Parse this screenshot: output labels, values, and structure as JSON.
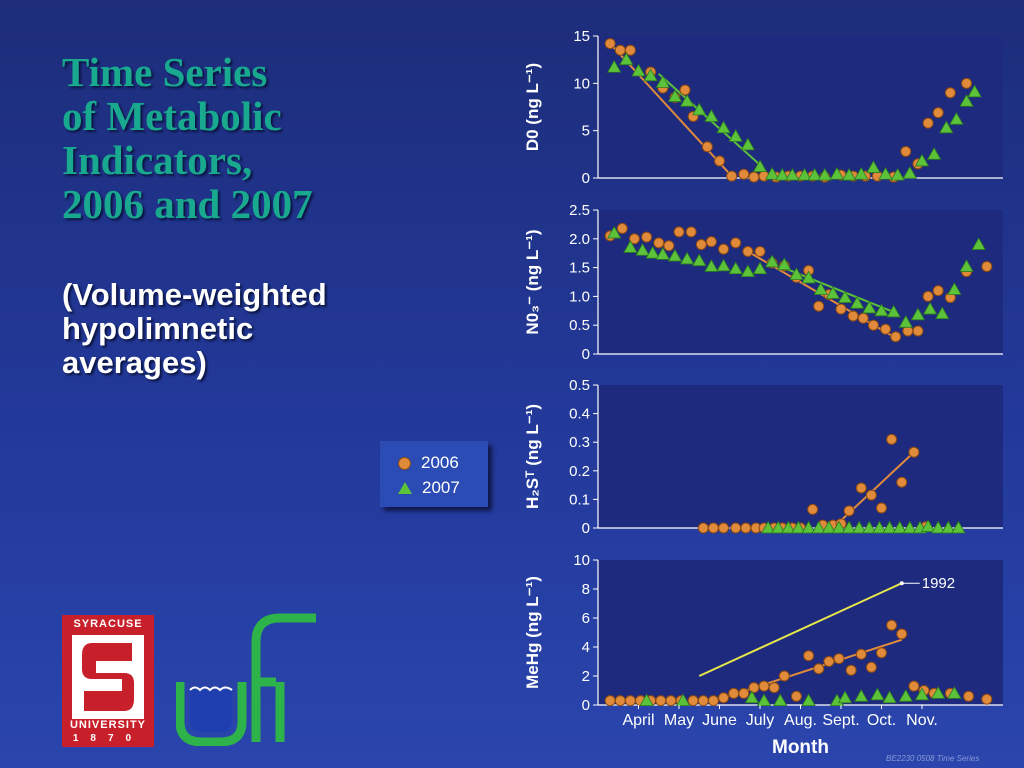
{
  "title_lines": [
    "Time Series",
    "of Metabolic",
    "Indicators,",
    "2006 and 2007"
  ],
  "subtitle_lines": [
    "(Volume-weighted",
    "hypolimnetic",
    "averages)"
  ],
  "legend": {
    "series_2006": "2006",
    "series_2007": "2007"
  },
  "logos": {
    "syracuse_top": "SYRACUSE",
    "syracuse_bottom": "UNIVERSITY",
    "syracuse_year": "1870",
    "ufi": "ufi"
  },
  "footer": "BE2230 0508  Time Series",
  "colors": {
    "background": "#2338a0",
    "plot_bg": "#1e2a7e",
    "title": "#19a98f",
    "series_2006": "#e08a3c",
    "series_2007": "#5cc23a",
    "trend_1992": "#e6e64a"
  },
  "chart_data": [
    {
      "type": "scatter",
      "ylabel": "D0 (ng L⁻¹)",
      "ylim": [
        0,
        15
      ],
      "yticks": [
        "0",
        "5",
        "10",
        "15"
      ],
      "series": [
        {
          "name": "2006",
          "points": [
            [
              3.3,
              14.2
            ],
            [
              3.55,
              13.5
            ],
            [
              3.8,
              13.5
            ],
            [
              4.3,
              11.2
            ],
            [
              4.6,
              9.5
            ],
            [
              4.9,
              8.5
            ],
            [
              5.15,
              9.3
            ],
            [
              5.35,
              6.5
            ],
            [
              5.7,
              3.3
            ],
            [
              6.0,
              1.8
            ],
            [
              6.3,
              0.2
            ],
            [
              6.6,
              0.4
            ],
            [
              6.85,
              0.1
            ],
            [
              7.1,
              0.2
            ],
            [
              7.4,
              0.1
            ],
            [
              7.7,
              0.2
            ],
            [
              8.0,
              0.2
            ],
            [
              8.3,
              0.2
            ],
            [
              8.6,
              0.1
            ],
            [
              9.0,
              0.3
            ],
            [
              9.3,
              0.2
            ],
            [
              9.6,
              0.2
            ],
            [
              9.9,
              0.2
            ],
            [
              10.3,
              0.1
            ],
            [
              10.6,
              2.8
            ],
            [
              10.9,
              1.5
            ],
            [
              11.15,
              5.8
            ],
            [
              11.4,
              6.9
            ],
            [
              11.7,
              9.0
            ],
            [
              12.1,
              10.0
            ]
          ]
        },
        {
          "name": "2007",
          "points": [
            [
              3.4,
              11.7
            ],
            [
              3.7,
              12.5
            ],
            [
              4.0,
              11.3
            ],
            [
              4.3,
              10.8
            ],
            [
              4.6,
              10.1
            ],
            [
              4.9,
              8.6
            ],
            [
              5.2,
              8.1
            ],
            [
              5.5,
              7.2
            ],
            [
              5.8,
              6.5
            ],
            [
              6.1,
              5.3
            ],
            [
              6.4,
              4.4
            ],
            [
              6.7,
              3.5
            ],
            [
              7.0,
              1.2
            ],
            [
              7.3,
              0.4
            ],
            [
              7.55,
              0.3
            ],
            [
              7.8,
              0.3
            ],
            [
              8.1,
              0.3
            ],
            [
              8.35,
              0.3
            ],
            [
              8.6,
              0.3
            ],
            [
              8.9,
              0.4
            ],
            [
              9.2,
              0.3
            ],
            [
              9.5,
              0.4
            ],
            [
              9.8,
              1.1
            ],
            [
              10.1,
              0.4
            ],
            [
              10.4,
              0.3
            ],
            [
              10.7,
              0.5
            ],
            [
              11.0,
              1.8
            ],
            [
              11.3,
              2.5
            ],
            [
              11.6,
              5.3
            ],
            [
              11.85,
              6.2
            ],
            [
              12.1,
              8.1
            ],
            [
              12.3,
              9.1
            ]
          ]
        }
      ],
      "trends": [
        {
          "series": "2006",
          "x": [
            3.3,
            6.3
          ],
          "y": [
            14.2,
            0.2
          ]
        },
        {
          "series": "2007",
          "x": [
            4.5,
            7.1
          ],
          "y": [
            11.0,
            1.0
          ]
        }
      ]
    },
    {
      "type": "scatter",
      "ylabel": "N0₃⁻ (ng L⁻¹)",
      "ylim": [
        0,
        2.5
      ],
      "yticks": [
        "0",
        "0.5",
        "1.0",
        "1.5",
        "2.0",
        "2.5"
      ],
      "series": [
        {
          "name": "2006",
          "points": [
            [
              3.3,
              2.05
            ],
            [
              3.6,
              2.18
            ],
            [
              3.9,
              2.0
            ],
            [
              4.2,
              2.03
            ],
            [
              4.5,
              1.93
            ],
            [
              4.75,
              1.88
            ],
            [
              5.0,
              2.12
            ],
            [
              5.3,
              2.12
            ],
            [
              5.55,
              1.9
            ],
            [
              5.8,
              1.95
            ],
            [
              6.1,
              1.82
            ],
            [
              6.4,
              1.93
            ],
            [
              6.7,
              1.78
            ],
            [
              7.0,
              1.78
            ],
            [
              7.3,
              1.58
            ],
            [
              7.6,
              1.53
            ],
            [
              7.9,
              1.33
            ],
            [
              8.2,
              1.45
            ],
            [
              8.45,
              0.83
            ],
            [
              8.7,
              1.03
            ],
            [
              9.0,
              0.78
            ],
            [
              9.3,
              0.66
            ],
            [
              9.55,
              0.62
            ],
            [
              9.8,
              0.5
            ],
            [
              10.1,
              0.43
            ],
            [
              10.35,
              0.3
            ],
            [
              10.65,
              0.4
            ],
            [
              10.9,
              0.4
            ],
            [
              11.15,
              1.0
            ],
            [
              11.4,
              1.1
            ],
            [
              11.7,
              0.98
            ],
            [
              12.1,
              1.43
            ],
            [
              12.6,
              1.52
            ]
          ]
        },
        {
          "name": "2007",
          "points": [
            [
              3.4,
              2.1
            ],
            [
              3.8,
              1.85
            ],
            [
              4.1,
              1.8
            ],
            [
              4.35,
              1.75
            ],
            [
              4.6,
              1.73
            ],
            [
              4.9,
              1.7
            ],
            [
              5.2,
              1.65
            ],
            [
              5.5,
              1.62
            ],
            [
              5.8,
              1.52
            ],
            [
              6.1,
              1.53
            ],
            [
              6.4,
              1.48
            ],
            [
              6.7,
              1.43
            ],
            [
              7.0,
              1.48
            ],
            [
              7.3,
              1.6
            ],
            [
              7.6,
              1.55
            ],
            [
              7.9,
              1.38
            ],
            [
              8.2,
              1.32
            ],
            [
              8.5,
              1.12
            ],
            [
              8.8,
              1.05
            ],
            [
              9.1,
              0.98
            ],
            [
              9.4,
              0.88
            ],
            [
              9.7,
              0.8
            ],
            [
              10.0,
              0.75
            ],
            [
              10.3,
              0.73
            ],
            [
              10.6,
              0.55
            ],
            [
              10.9,
              0.68
            ],
            [
              11.2,
              0.78
            ],
            [
              11.5,
              0.7
            ],
            [
              11.8,
              1.12
            ],
            [
              12.1,
              1.52
            ],
            [
              12.4,
              1.9
            ]
          ]
        }
      ],
      "trends": [
        {
          "series": "2006",
          "x": [
            6.7,
            10.35
          ],
          "y": [
            1.78,
            0.28
          ]
        },
        {
          "series": "2007",
          "x": [
            7.5,
            10.4
          ],
          "y": [
            1.52,
            0.7
          ]
        }
      ]
    },
    {
      "type": "scatter",
      "ylabel": "H₂Sᵀ (ng L⁻¹)",
      "ylim": [
        0,
        0.5
      ],
      "yticks": [
        "0",
        "0.1",
        "0.2",
        "0.3",
        "0.4",
        "0.5"
      ],
      "series": [
        {
          "name": "2006",
          "points": [
            [
              5.6,
              0.0
            ],
            [
              5.85,
              0.0
            ],
            [
              6.1,
              0.0
            ],
            [
              6.4,
              0.0
            ],
            [
              6.65,
              0.0
            ],
            [
              6.9,
              0.0
            ],
            [
              7.1,
              0.0
            ],
            [
              7.35,
              0.0
            ],
            [
              7.55,
              0.0
            ],
            [
              7.8,
              0.0
            ],
            [
              8.0,
              0.0
            ],
            [
              8.3,
              0.065
            ],
            [
              8.55,
              0.01
            ],
            [
              8.8,
              0.01
            ],
            [
              9.0,
              0.015
            ],
            [
              9.2,
              0.06
            ],
            [
              9.5,
              0.14
            ],
            [
              9.75,
              0.115
            ],
            [
              10.0,
              0.07
            ],
            [
              10.25,
              0.31
            ],
            [
              10.5,
              0.16
            ],
            [
              10.8,
              0.265
            ],
            [
              11.1,
              0.005
            ]
          ]
        },
        {
          "name": "2007",
          "points": [
            [
              7.2,
              0.0
            ],
            [
              7.45,
              0.0
            ],
            [
              7.7,
              0.0
            ],
            [
              7.95,
              0.0
            ],
            [
              8.2,
              0.0
            ],
            [
              8.45,
              0.0
            ],
            [
              8.7,
              0.0
            ],
            [
              8.95,
              0.0
            ],
            [
              9.2,
              0.0
            ],
            [
              9.45,
              0.0
            ],
            [
              9.7,
              0.0
            ],
            [
              9.95,
              0.0
            ],
            [
              10.2,
              0.0
            ],
            [
              10.45,
              0.0
            ],
            [
              10.7,
              0.0
            ],
            [
              10.95,
              0.0
            ],
            [
              11.15,
              0.005
            ],
            [
              11.4,
              0.0
            ],
            [
              11.65,
              0.0
            ],
            [
              11.9,
              0.0
            ]
          ]
        }
      ],
      "trends": [
        {
          "series": "2006",
          "x": [
            8.8,
            10.8
          ],
          "y": [
            0.0,
            0.265
          ]
        }
      ]
    },
    {
      "type": "scatter",
      "ylabel": "MeHg (ng L⁻¹)",
      "xlabel": "Month",
      "ylim": [
        0,
        10
      ],
      "yticks": [
        "0",
        "2",
        "4",
        "6",
        "8",
        "10"
      ],
      "xlim": [
        3.0,
        13.0
      ],
      "xticks": [
        {
          "at": 4.0,
          "label": "April"
        },
        {
          "at": 5.0,
          "label": "May"
        },
        {
          "at": 6.0,
          "label": "June"
        },
        {
          "at": 7.0,
          "label": "July"
        },
        {
          "at": 8.0,
          "label": "Aug."
        },
        {
          "at": 9.0,
          "label": "Sept."
        },
        {
          "at": 10.0,
          "label": "Oct."
        },
        {
          "at": 11.0,
          "label": "Nov."
        }
      ],
      "series": [
        {
          "name": "2006",
          "points": [
            [
              3.3,
              0.3
            ],
            [
              3.55,
              0.3
            ],
            [
              3.8,
              0.3
            ],
            [
              4.05,
              0.3
            ],
            [
              4.3,
              0.3
            ],
            [
              4.55,
              0.3
            ],
            [
              4.8,
              0.3
            ],
            [
              5.05,
              0.3
            ],
            [
              5.35,
              0.3
            ],
            [
              5.6,
              0.3
            ],
            [
              5.85,
              0.3
            ],
            [
              6.1,
              0.5
            ],
            [
              6.35,
              0.8
            ],
            [
              6.6,
              0.8
            ],
            [
              6.85,
              1.2
            ],
            [
              7.1,
              1.3
            ],
            [
              7.35,
              1.2
            ],
            [
              7.6,
              2.0
            ],
            [
              7.9,
              0.6
            ],
            [
              8.2,
              3.4
            ],
            [
              8.45,
              2.5
            ],
            [
              8.7,
              3.0
            ],
            [
              8.95,
              3.2
            ],
            [
              9.25,
              2.4
            ],
            [
              9.5,
              3.5
            ],
            [
              9.75,
              2.6
            ],
            [
              10.0,
              3.6
            ],
            [
              10.25,
              5.5
            ],
            [
              10.5,
              4.9
            ],
            [
              10.8,
              1.3
            ],
            [
              11.05,
              1.0
            ],
            [
              11.3,
              0.8
            ],
            [
              11.7,
              0.8
            ],
            [
              12.15,
              0.6
            ],
            [
              12.6,
              0.4
            ]
          ]
        },
        {
          "name": "2007",
          "points": [
            [
              4.2,
              0.3
            ],
            [
              5.1,
              0.3
            ],
            [
              6.8,
              0.5
            ],
            [
              7.1,
              0.3
            ],
            [
              7.5,
              0.3
            ],
            [
              8.2,
              0.3
            ],
            [
              8.9,
              0.3
            ],
            [
              9.1,
              0.5
            ],
            [
              9.5,
              0.6
            ],
            [
              9.9,
              0.7
            ],
            [
              10.2,
              0.5
            ],
            [
              10.6,
              0.6
            ],
            [
              11.0,
              0.7
            ],
            [
              11.4,
              0.8
            ],
            [
              11.8,
              0.8
            ]
          ]
        }
      ],
      "trends": [
        {
          "series": "2006",
          "x": [
            6.1,
            10.5
          ],
          "y": [
            0.5,
            4.5
          ]
        },
        {
          "series": "1992",
          "x": [
            5.5,
            10.5
          ],
          "y": [
            2.0,
            8.4
          ],
          "label": "1992"
        }
      ]
    }
  ]
}
